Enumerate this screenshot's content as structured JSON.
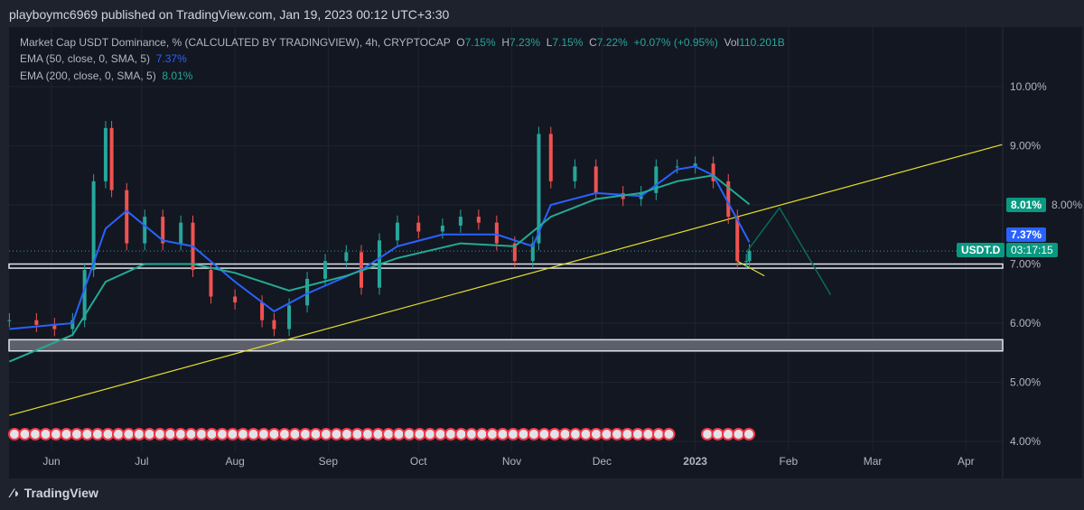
{
  "header": {
    "publisher_line": "playboymc6969 published on TradingView.com, Jan 19, 2023 00:12 UTC+3:30"
  },
  "legend": {
    "symbol": "Market Cap USDT Dominance, % (CALCULATED BY TRADINGVIEW), 4h, CRYPTOCAP",
    "o_label": "O",
    "o": "7.15%",
    "h_label": "H",
    "h": "7.23%",
    "l_label": "L",
    "l": "7.15%",
    "c_label": "C",
    "c": "7.22%",
    "change": "+0.07% (+0.95%)",
    "vol_label": "Vol",
    "vol": "110.201B",
    "ema50_label": "EMA (50, close, 0, SMA, 5)",
    "ema50_value": "7.37%",
    "ema200_label": "EMA (200, close, 0, SMA, 5)",
    "ema200_value": "8.01%"
  },
  "price_tags": {
    "ema200": "8.01%",
    "ema50": "7.37%",
    "symbol": "USDT.D",
    "countdown": "03:17:15"
  },
  "footer": {
    "brand": "TradingView"
  },
  "colors": {
    "up": "#26a69a",
    "down": "#ef5350",
    "ema50": "#2962ff",
    "ema200": "#22ab94",
    "trendline": "#e5e02b",
    "background": "#131722"
  },
  "chart_data": {
    "type": "candlestick",
    "title": "Market Cap USDT Dominance, % (CALCULATED BY TRADINGVIEW), 4h, CRYPTOCAP",
    "ylim": [
      4.0,
      10.4
    ],
    "y_ticks": [
      "10.00%",
      "9.00%",
      "8.00%",
      "7.00%",
      "6.00%",
      "5.00%",
      "4.00%"
    ],
    "y_tick_values": [
      10,
      9,
      8,
      7,
      6,
      5,
      4
    ],
    "x_ticks": [
      "Jun",
      "Jul",
      "Aug",
      "Sep",
      "Oct",
      "Nov",
      "Dec",
      "2023",
      "Feb",
      "Mar",
      "Apr"
    ],
    "x_tick_dates": [
      "2022-06-01",
      "2022-07-01",
      "2022-08-01",
      "2022-09-01",
      "2022-10-01",
      "2022-11-01",
      "2022-12-01",
      "2023-01-01",
      "2023-02-01",
      "2023-03-01",
      "2023-04-01"
    ],
    "series": [
      {
        "name": "USDT.D",
        "dates": [
          "2022-05-18",
          "2022-05-27",
          "2022-06-02",
          "2022-06-08",
          "2022-06-12",
          "2022-06-15",
          "2022-06-19",
          "2022-06-21",
          "2022-06-26",
          "2022-07-02",
          "2022-07-08",
          "2022-07-14",
          "2022-07-18",
          "2022-07-24",
          "2022-08-01",
          "2022-08-10",
          "2022-08-14",
          "2022-08-19",
          "2022-08-25",
          "2022-08-31",
          "2022-09-07",
          "2022-09-12",
          "2022-09-18",
          "2022-09-24",
          "2022-10-01",
          "2022-10-09",
          "2022-10-15",
          "2022-10-21",
          "2022-10-27",
          "2022-11-02",
          "2022-11-08",
          "2022-11-10",
          "2022-11-14",
          "2022-11-22",
          "2022-11-29",
          "2022-12-08",
          "2022-12-14",
          "2022-12-19",
          "2022-12-26",
          "2023-01-01",
          "2023-01-07",
          "2023-01-12",
          "2023-01-15",
          "2023-01-18",
          "2023-01-19"
        ],
        "values": [
          6.05,
          5.97,
          5.9,
          6.05,
          6.9,
          8.4,
          9.3,
          8.25,
          7.35,
          7.8,
          7.35,
          7.7,
          6.9,
          6.45,
          6.35,
          6.05,
          5.9,
          6.3,
          6.75,
          7.05,
          7.2,
          6.6,
          7.4,
          7.7,
          7.55,
          7.65,
          7.8,
          7.7,
          7.35,
          7.05,
          7.35,
          9.2,
          8.4,
          8.65,
          8.2,
          8.1,
          8.2,
          8.65,
          8.65,
          8.7,
          8.4,
          7.8,
          7.05,
          7.05,
          7.22
        ]
      },
      {
        "name": "EMA (50, close, 0, SMA, 5)",
        "dates": [
          "2022-05-18",
          "2022-06-08",
          "2022-06-19",
          "2022-06-26",
          "2022-07-08",
          "2022-07-18",
          "2022-08-01",
          "2022-08-14",
          "2022-08-25",
          "2022-09-12",
          "2022-09-24",
          "2022-10-09",
          "2022-10-27",
          "2022-11-08",
          "2022-11-14",
          "2022-11-29",
          "2022-12-14",
          "2022-12-26",
          "2023-01-01",
          "2023-01-07",
          "2023-01-15",
          "2023-01-19"
        ],
        "values": [
          5.9,
          6.0,
          7.6,
          7.9,
          7.4,
          7.3,
          6.7,
          6.2,
          6.5,
          6.9,
          7.3,
          7.5,
          7.5,
          7.3,
          8.0,
          8.2,
          8.15,
          8.6,
          8.65,
          8.5,
          7.75,
          7.37
        ]
      },
      {
        "name": "EMA (200, close, 0, SMA, 5)",
        "dates": [
          "2022-05-18",
          "2022-06-08",
          "2022-06-19",
          "2022-07-02",
          "2022-07-18",
          "2022-08-01",
          "2022-08-19",
          "2022-09-07",
          "2022-09-24",
          "2022-10-15",
          "2022-11-02",
          "2022-11-14",
          "2022-11-29",
          "2022-12-14",
          "2022-12-26",
          "2023-01-07",
          "2023-01-19"
        ],
        "values": [
          5.35,
          5.8,
          6.7,
          7.0,
          7.0,
          6.85,
          6.55,
          6.8,
          7.1,
          7.35,
          7.3,
          7.8,
          8.1,
          8.2,
          8.4,
          8.5,
          8.01
        ]
      }
    ],
    "drawings": {
      "trendline": {
        "from": [
          "2022-05-18",
          4.44
        ],
        "to": [
          "2023-04-13",
          9.02
        ]
      },
      "support_zones": [
        [
          6.93,
          7.0
        ],
        [
          5.53,
          5.72
        ]
      ],
      "projection": [
        [
          "2023-01-18",
          7.2
        ],
        [
          "2023-01-29",
          7.95
        ],
        [
          "2023-02-15",
          6.48
        ]
      ]
    }
  }
}
